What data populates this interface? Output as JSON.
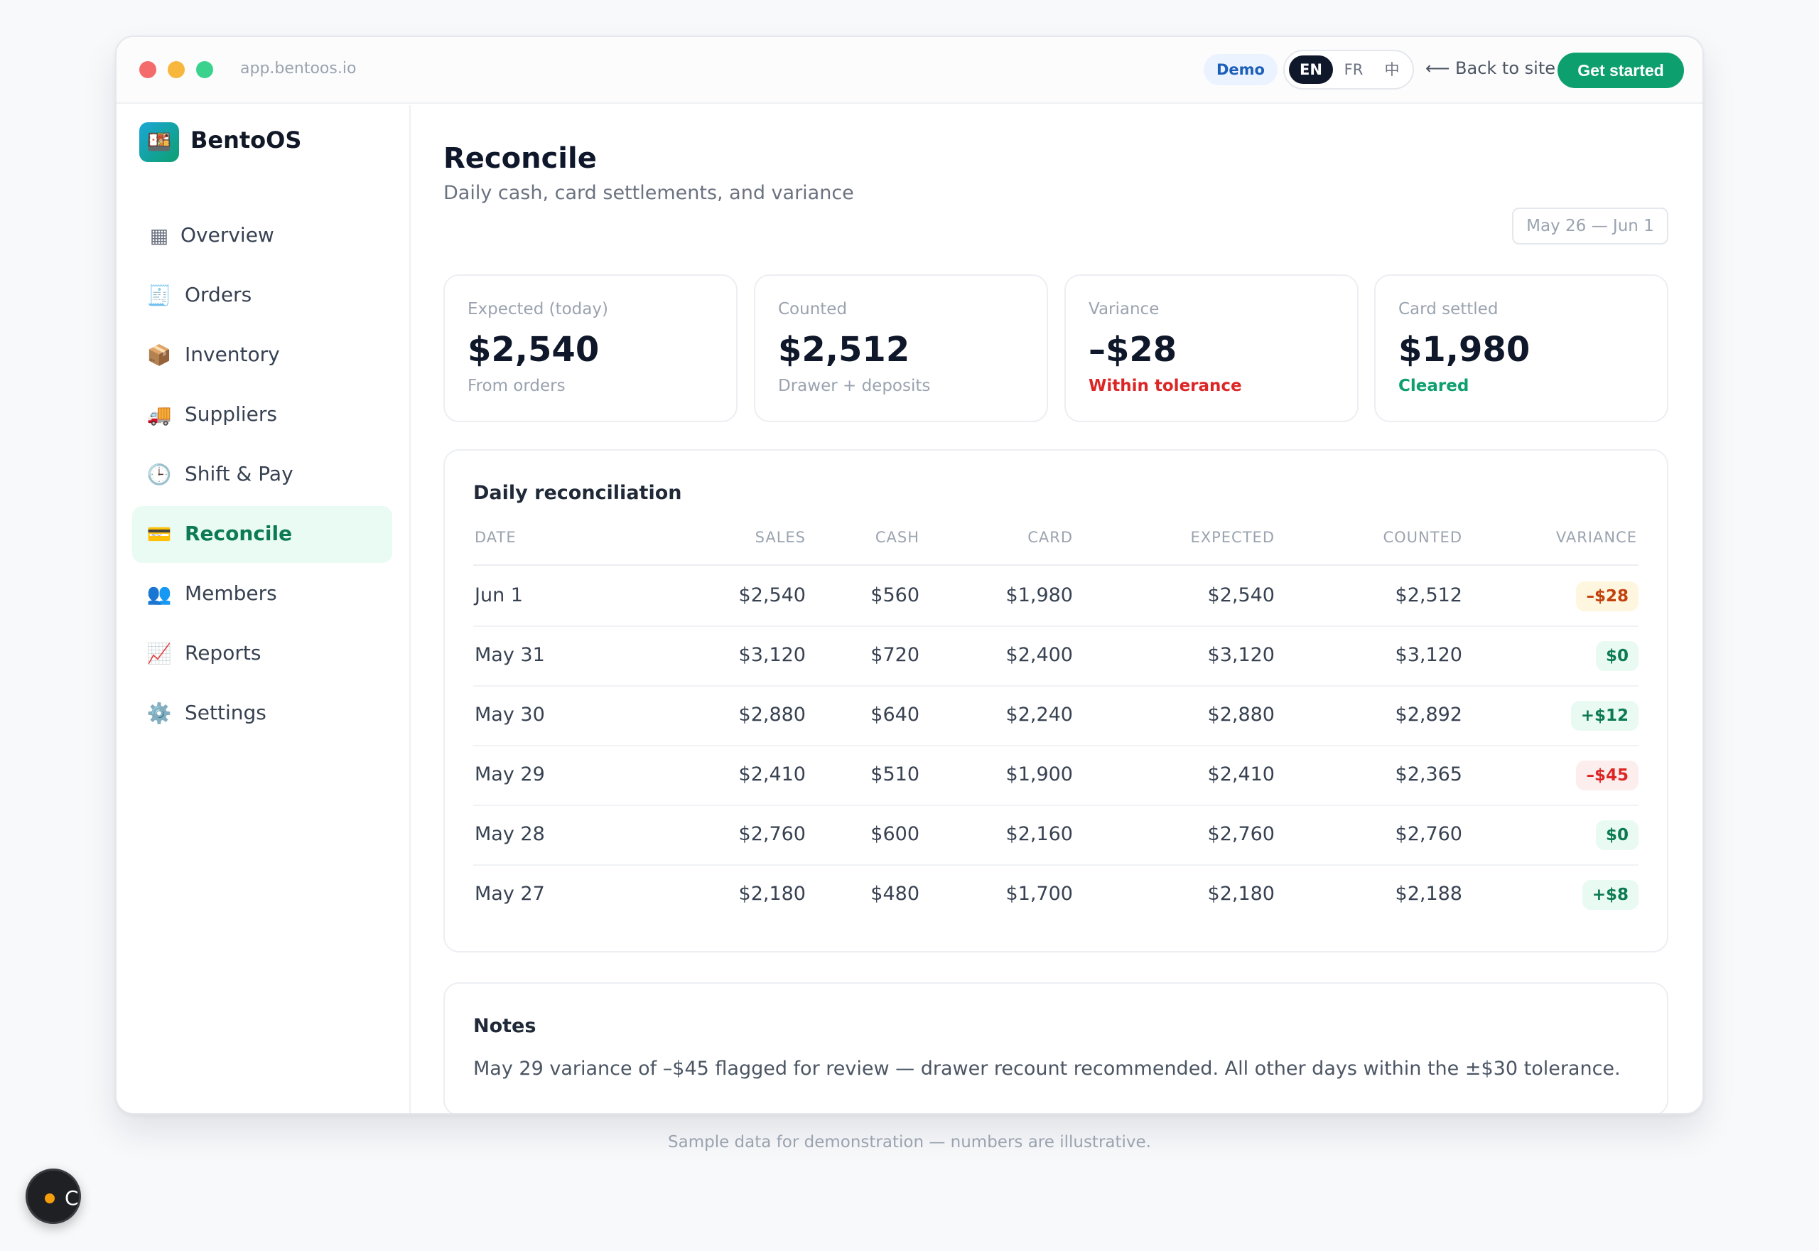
{
  "titlebar": {
    "url": "app.bentoos.io",
    "demo_badge": "Demo",
    "languages": [
      "EN",
      "FR",
      "中"
    ],
    "active_language": "EN",
    "back_link": "⟵ Back to site",
    "cta": "Get started"
  },
  "brand": {
    "name": "BentoOS",
    "logo_icon": "🍱"
  },
  "sidebar": {
    "items": [
      {
        "label": "Overview",
        "icon": "▦",
        "icon_name": "grid-icon"
      },
      {
        "label": "Orders",
        "icon": "🧾",
        "icon_name": "receipt-icon"
      },
      {
        "label": "Inventory",
        "icon": "📦",
        "icon_name": "package-icon"
      },
      {
        "label": "Suppliers",
        "icon": "🚚",
        "icon_name": "truck-icon"
      },
      {
        "label": "Shift & Pay",
        "icon": "🕒",
        "icon_name": "clock-icon"
      },
      {
        "label": "Reconcile",
        "icon": "💳",
        "icon_name": "credit-card-icon",
        "active": true
      },
      {
        "label": "Members",
        "icon": "👥",
        "icon_name": "people-icon"
      },
      {
        "label": "Reports",
        "icon": "📈",
        "icon_name": "chart-icon"
      },
      {
        "label": "Settings",
        "icon": "⚙️",
        "icon_name": "gear-icon"
      }
    ]
  },
  "page": {
    "title": "Reconcile",
    "subtitle": "Daily cash, card settlements, and variance",
    "date_range": "May 26 — Jun 1"
  },
  "kpis": [
    {
      "label": "Expected (today)",
      "value": "$2,540",
      "sub": "From orders",
      "tone": "muted"
    },
    {
      "label": "Counted",
      "value": "$2,512",
      "sub": "Drawer + deposits",
      "tone": "muted"
    },
    {
      "label": "Variance",
      "value": "–$28",
      "sub": "Within tolerance",
      "tone": "red"
    },
    {
      "label": "Card settled",
      "value": "$1,980",
      "sub": "Cleared",
      "tone": "green"
    }
  ],
  "table": {
    "title": "Daily reconciliation",
    "columns": [
      "DATE",
      "SALES",
      "CASH",
      "CARD",
      "EXPECTED",
      "COUNTED",
      "VARIANCE"
    ],
    "rows": [
      {
        "date": "Jun 1",
        "sales": "$2,540",
        "cash": "$560",
        "card": "$1,980",
        "expected": "$2,540",
        "counted": "$2,512",
        "variance": "–$28",
        "status": "warn"
      },
      {
        "date": "May 31",
        "sales": "$3,120",
        "cash": "$720",
        "card": "$2,400",
        "expected": "$3,120",
        "counted": "$3,120",
        "variance": "$0",
        "status": "pos"
      },
      {
        "date": "May 30",
        "sales": "$2,880",
        "cash": "$640",
        "card": "$2,240",
        "expected": "$2,880",
        "counted": "$2,892",
        "variance": "+$12",
        "status": "pos"
      },
      {
        "date": "May 29",
        "sales": "$2,410",
        "cash": "$510",
        "card": "$1,900",
        "expected": "$2,410",
        "counted": "$2,365",
        "variance": "–$45",
        "status": "neg"
      },
      {
        "date": "May 28",
        "sales": "$2,760",
        "cash": "$600",
        "card": "$2,160",
        "expected": "$2,760",
        "counted": "$2,760",
        "variance": "$0",
        "status": "pos"
      },
      {
        "date": "May 27",
        "sales": "$2,180",
        "cash": "$480",
        "card": "$1,700",
        "expected": "$2,180",
        "counted": "$2,188",
        "variance": "+$8",
        "status": "pos"
      }
    ]
  },
  "notes": {
    "title": "Notes",
    "text": "May 29 variance of –$45 flagged for review — drawer recount recommended. All other days within the ±$30 tolerance."
  },
  "footer": "Sample data for demonstration — numbers are illustrative.",
  "fab": {
    "letter": "C"
  },
  "colors": {
    "accent": "#0e9f6e",
    "active_bg": "#e9fbf2",
    "negative": "#dc2626",
    "warning": "#c2410c"
  }
}
